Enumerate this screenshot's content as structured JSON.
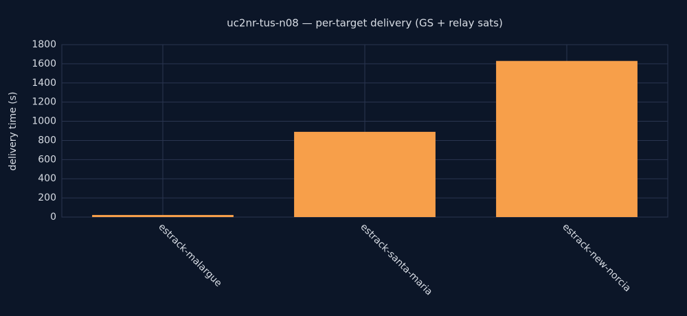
{
  "chart_data": {
    "type": "bar",
    "title": "uc2nr-tus-n08 — per-target delivery (GS + relay sats)",
    "y_label": "delivery time (s)",
    "categories": [
      "estrack-malargue",
      "estrack-santa-maria",
      "estrack-new-norcia"
    ],
    "values": [
      22,
      890,
      1630
    ],
    "color": "#f79f4a",
    "ylim": [
      0,
      1800
    ],
    "yticks": [
      0,
      200,
      400,
      600,
      800,
      1000,
      1200,
      1400,
      1600,
      1800
    ],
    "grid": true
  }
}
